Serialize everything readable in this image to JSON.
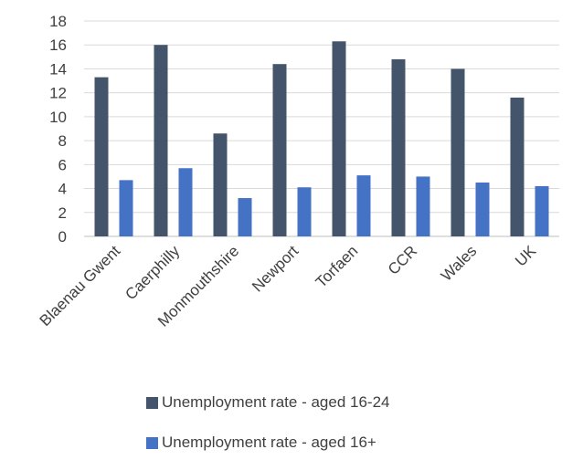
{
  "chart_data": {
    "type": "bar",
    "categories": [
      "Blaenau Gwent",
      "Caerphilly",
      "Monmouthshire",
      "Newport",
      "Torfaen",
      "CCR",
      "Wales",
      "UK"
    ],
    "series": [
      {
        "name": "Unemployment rate - aged 16-24",
        "color": "#44546a",
        "values": [
          13.3,
          16.0,
          8.6,
          14.4,
          16.3,
          14.8,
          14.0,
          11.6
        ]
      },
      {
        "name": "Unemployment rate - aged 16+",
        "color": "#4472c4",
        "values": [
          4.7,
          5.7,
          3.2,
          4.1,
          5.1,
          5.0,
          4.5,
          4.2
        ]
      }
    ],
    "ylim": [
      0,
      18
    ],
    "yticks": [
      0,
      2,
      4,
      6,
      8,
      10,
      12,
      14,
      16,
      18
    ],
    "grid": true,
    "legend_position": "bottom"
  }
}
